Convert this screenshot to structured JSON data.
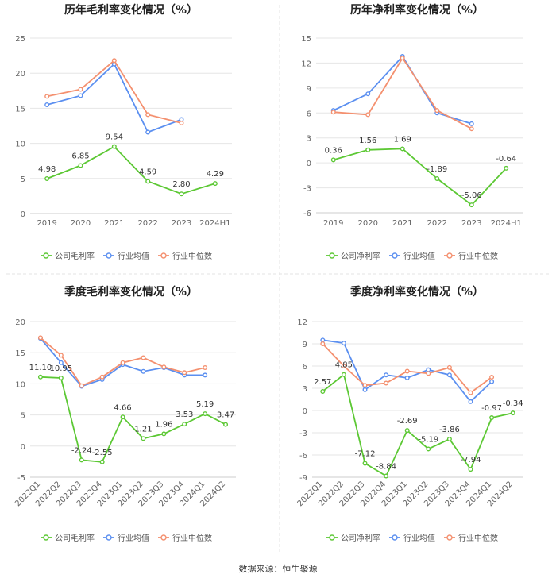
{
  "colors": {
    "company": "#5cc834",
    "industry_avg": "#5b8ff0",
    "industry_median": "#f4906f",
    "grid": "#e6e6e6",
    "axis_text": "#666666",
    "title_text": "#222222",
    "label_text": "#333333"
  },
  "chart_data": [
    {
      "type": "line",
      "title": "历年毛利率变化情况（%）",
      "categories": [
        "2019",
        "2020",
        "2021",
        "2022",
        "2023",
        "2024H1"
      ],
      "ylim": [
        0,
        25
      ],
      "yticks": [
        0,
        5,
        10,
        15,
        20,
        25
      ],
      "ytick_labels": [
        "0",
        "5",
        "10",
        "15",
        "20",
        "25"
      ],
      "series": [
        {
          "name": "公司毛利率",
          "role": "company",
          "values": [
            4.98,
            6.85,
            9.54,
            4.59,
            2.8,
            4.29
          ],
          "labels": [
            "4.98",
            "6.85",
            "9.54",
            "4.59",
            "2.80",
            "4.29"
          ]
        },
        {
          "name": "行业均值",
          "role": "industry_avg",
          "values": [
            15.5,
            16.8,
            21.3,
            11.6,
            13.4,
            null
          ]
        },
        {
          "name": "行业中位数",
          "role": "industry_median",
          "values": [
            16.7,
            17.7,
            21.8,
            14.1,
            12.9,
            null
          ]
        }
      ],
      "x_rotated": false
    },
    {
      "type": "line",
      "title": "历年净利率变化情况（%）",
      "categories": [
        "2019",
        "2020",
        "2021",
        "2022",
        "2023",
        "2024H1"
      ],
      "ylim": [
        -6,
        15
      ],
      "yticks": [
        -6,
        -3,
        0,
        3,
        6,
        9,
        12,
        15
      ],
      "ytick_labels": [
        "-6",
        "-3",
        "0",
        "3",
        "6",
        "9",
        "12",
        "15"
      ],
      "series": [
        {
          "name": "公司净利率",
          "role": "company",
          "values": [
            0.36,
            1.56,
            1.69,
            -1.89,
            -5.06,
            -0.64
          ],
          "labels": [
            "0.36",
            "1.56",
            "1.69",
            "-1.89",
            "-5.06",
            "-0.64"
          ]
        },
        {
          "name": "行业均值",
          "role": "industry_avg",
          "values": [
            6.3,
            8.3,
            12.8,
            6.0,
            4.7,
            null
          ]
        },
        {
          "name": "行业中位数",
          "role": "industry_median",
          "values": [
            6.1,
            5.8,
            12.6,
            6.3,
            4.1,
            null
          ]
        }
      ],
      "x_rotated": false
    },
    {
      "type": "line",
      "title": "季度毛利率变化情况（%）",
      "categories": [
        "2022Q1",
        "2022Q2",
        "2022Q3",
        "2022Q4",
        "2023Q1",
        "2023Q2",
        "2023Q3",
        "2023Q4",
        "2024Q1",
        "2024Q2"
      ],
      "ylim": [
        -5,
        20
      ],
      "yticks": [
        -5,
        0,
        5,
        10,
        15,
        20
      ],
      "ytick_labels": [
        "-5",
        "0",
        "5",
        "10",
        "15",
        "20"
      ],
      "series": [
        {
          "name": "公司毛利率",
          "role": "company",
          "values": [
            11.1,
            10.95,
            -2.24,
            -2.55,
            4.66,
            1.21,
            1.96,
            3.53,
            5.19,
            3.47
          ],
          "labels": [
            "11.10",
            "10.95",
            "-2.24",
            "-2.55",
            "4.66",
            "1.21",
            "1.96",
            "3.53",
            "5.19",
            "3.47"
          ]
        },
        {
          "name": "行业均值",
          "role": "industry_avg",
          "values": [
            17.3,
            13.4,
            9.6,
            10.7,
            13.1,
            12.0,
            12.6,
            11.4,
            11.4,
            null
          ]
        },
        {
          "name": "行业中位数",
          "role": "industry_median",
          "values": [
            17.4,
            14.6,
            9.7,
            11.1,
            13.4,
            14.2,
            12.7,
            11.8,
            12.6,
            null
          ]
        }
      ],
      "x_rotated": true
    },
    {
      "type": "line",
      "title": "季度净利率变化情况（%）",
      "categories": [
        "2022Q1",
        "2022Q2",
        "2022Q3",
        "2022Q4",
        "2023Q1",
        "2023Q2",
        "2023Q3",
        "2023Q4",
        "2024Q1",
        "2024Q2"
      ],
      "ylim": [
        -9,
        12
      ],
      "yticks": [
        -9,
        -6,
        -3,
        0,
        3,
        6,
        9,
        12
      ],
      "ytick_labels": [
        "-9",
        "-6",
        "-3",
        "0",
        "3",
        "6",
        "9",
        "12"
      ],
      "series": [
        {
          "name": "公司净利率",
          "role": "company",
          "values": [
            2.57,
            4.85,
            -7.12,
            -8.84,
            -2.69,
            -5.19,
            -3.86,
            -7.94,
            -0.97,
            -0.34
          ],
          "labels": [
            "2.57",
            "4.85",
            "-7.12",
            "-8.84",
            "-2.69",
            "-5.19",
            "-3.86",
            "-7.94",
            "-0.97",
            "-0.34"
          ]
        },
        {
          "name": "行业均值",
          "role": "industry_avg",
          "values": [
            9.5,
            9.1,
            2.8,
            4.8,
            4.4,
            5.5,
            4.8,
            1.2,
            3.9,
            null
          ]
        },
        {
          "name": "行业中位数",
          "role": "industry_median",
          "values": [
            9.0,
            6.0,
            3.4,
            3.7,
            5.3,
            5.0,
            5.8,
            2.4,
            4.5,
            null
          ]
        }
      ],
      "x_rotated": true
    }
  ],
  "footer": {
    "source": "数据来源：恒生聚源"
  }
}
